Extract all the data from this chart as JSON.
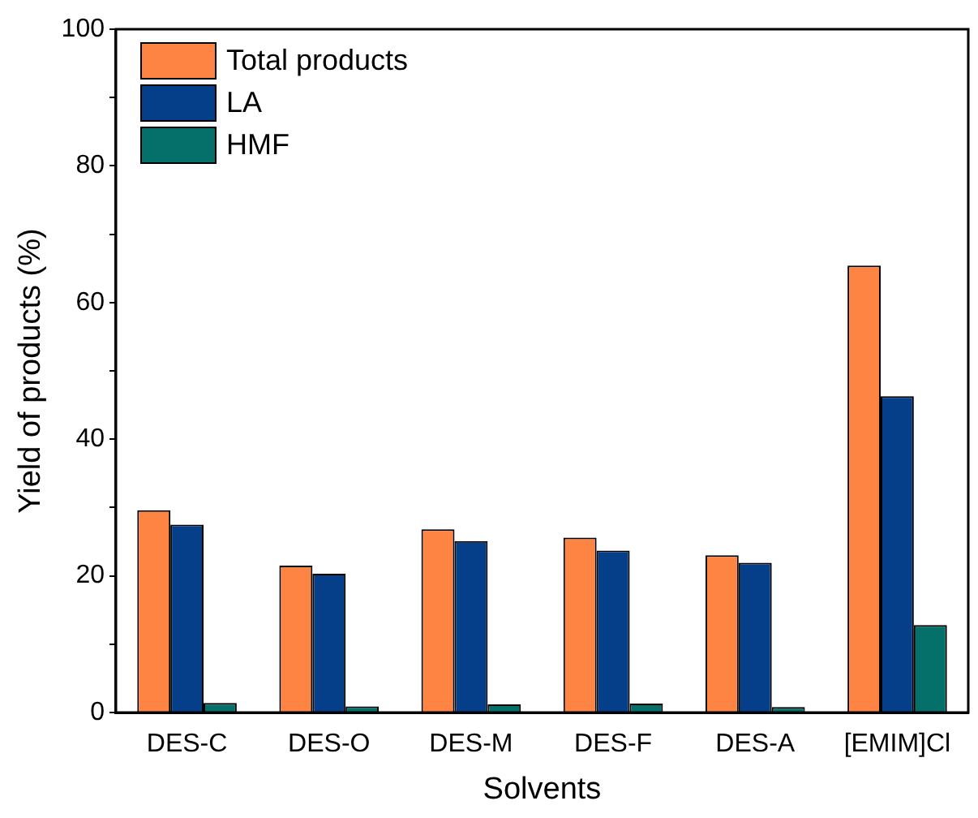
{
  "chart_data": {
    "type": "bar",
    "xlabel": "Solvents",
    "ylabel": "Yield of products (%)",
    "categories": [
      "DES-C",
      "DES-O",
      "DES-M",
      "DES-F",
      "DES-A",
      "[EMIM]Cl"
    ],
    "series": [
      {
        "name": "Total products",
        "color": "#fd8442",
        "values": [
          29.6,
          21.5,
          26.8,
          25.6,
          23.0,
          65.4
        ]
      },
      {
        "name": "LA",
        "color": "#053f8a",
        "values": [
          27.5,
          20.3,
          25.1,
          23.7,
          21.9,
          46.3
        ]
      },
      {
        "name": "HMF",
        "color": "#05706a",
        "values": [
          1.4,
          0.9,
          1.2,
          1.3,
          0.8,
          12.8
        ]
      }
    ],
    "ylim": [
      0,
      100
    ],
    "yticks": [
      0,
      {
        "value": 10,
        "label": null
      },
      20,
      {
        "value": 30,
        "label": null
      },
      40,
      {
        "value": 50,
        "label": null
      },
      60,
      {
        "value": 70,
        "label": null
      },
      80,
      {
        "value": 90,
        "label": null
      },
      100
    ],
    "grid": false,
    "legend": "top left"
  }
}
